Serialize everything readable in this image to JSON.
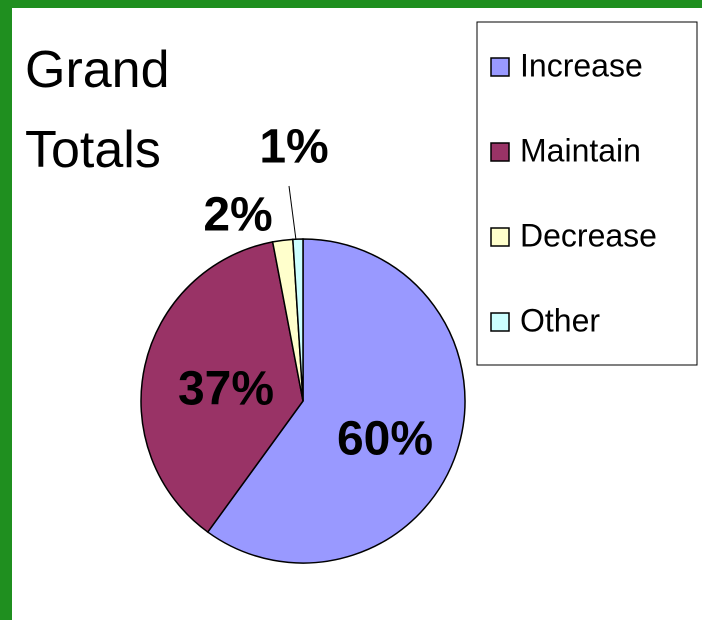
{
  "chart_data": {
    "type": "pie",
    "title": "Grand Totals",
    "categories": [
      "Increase",
      "Maintain",
      "Decrease",
      "Other"
    ],
    "values": [
      60,
      37,
      2,
      1
    ],
    "value_labels": [
      "60%",
      "37%",
      "2%",
      "1%"
    ],
    "colors": [
      "#9999ff",
      "#993366",
      "#ffffcc",
      "#ccffff"
    ],
    "legend": "right"
  }
}
